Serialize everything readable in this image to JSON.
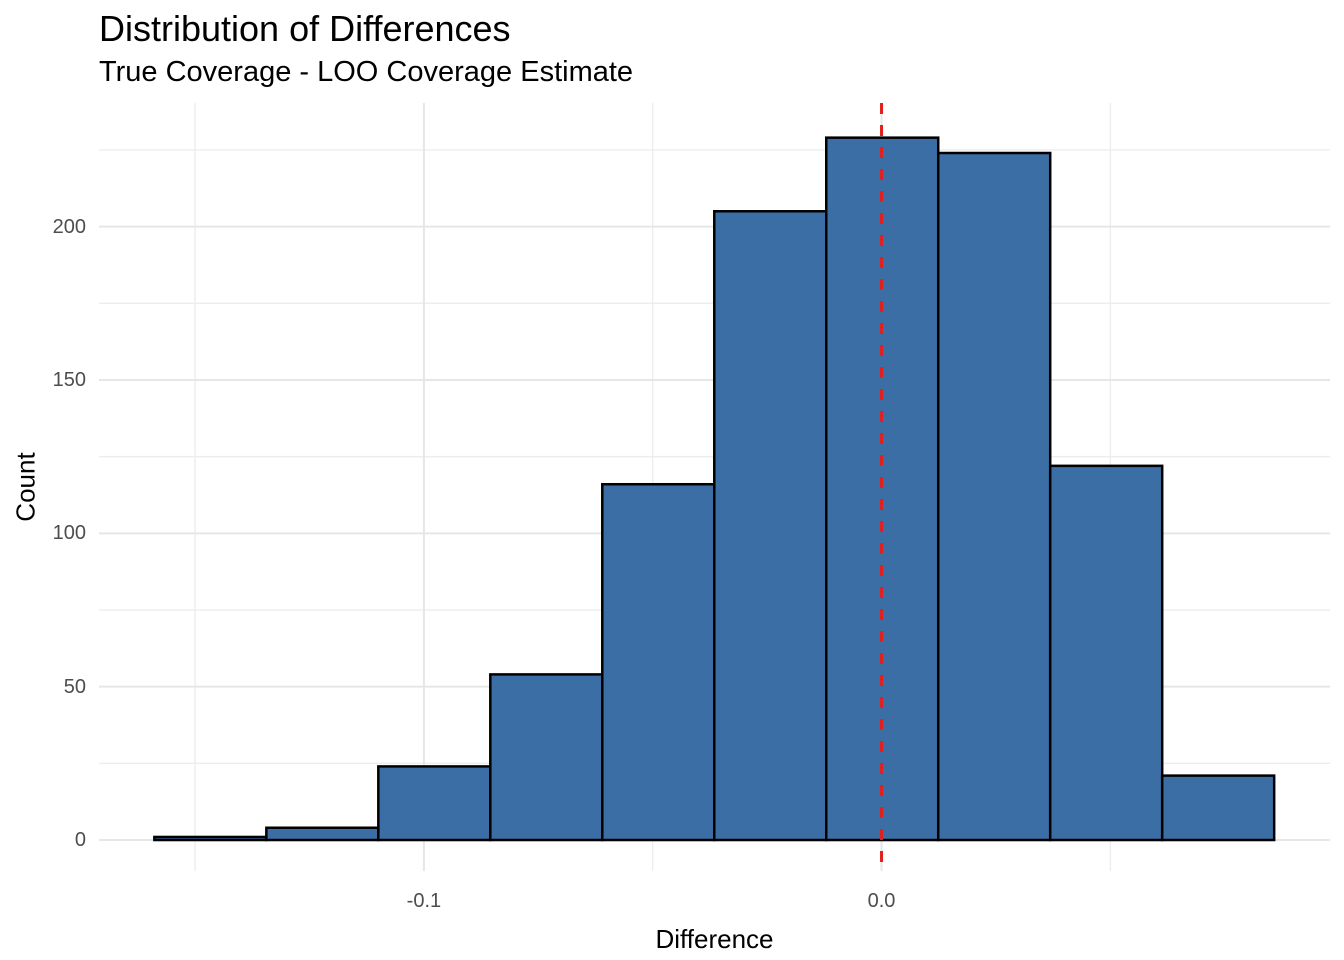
{
  "chart_data": {
    "type": "histogram",
    "title": "Distribution of Differences",
    "subtitle": "True Coverage - LOO Coverage Estimate",
    "xlabel": "Difference",
    "ylabel": "Count",
    "total_count": 1000,
    "bin_start": -0.1589,
    "bin_width": 0.02447,
    "counts": [
      1,
      4,
      24,
      54,
      116,
      205,
      229,
      224,
      122,
      21
    ],
    "x_axis": {
      "ticks": [
        -0.1,
        0.0
      ],
      "tick_labels": [
        "-0.1",
        "0.0"
      ],
      "minor_ticks": [
        -0.15,
        -0.05,
        0.05
      ],
      "lim": [
        -0.171,
        0.098
      ]
    },
    "y_axis": {
      "ticks": [
        0,
        50,
        100,
        150,
        200
      ],
      "tick_labels": [
        "0",
        "50",
        "100",
        "150",
        "200"
      ],
      "minor_ticks": [
        25,
        75,
        125,
        175,
        225
      ],
      "lim": [
        -10.1,
        240.3
      ]
    },
    "reference_line": {
      "x": 0.0,
      "style": "dashed",
      "color": "#E1201E"
    },
    "grid": true,
    "legend": "none",
    "colors": {
      "bar_fill": "#3B6EA5",
      "bar_stroke": "#000000",
      "grid_major": "#E6E6E6",
      "grid_minor": "#EDEDED",
      "tick_label": "#4D4D4D",
      "text": "#000000",
      "background": "#FFFFFF"
    }
  }
}
